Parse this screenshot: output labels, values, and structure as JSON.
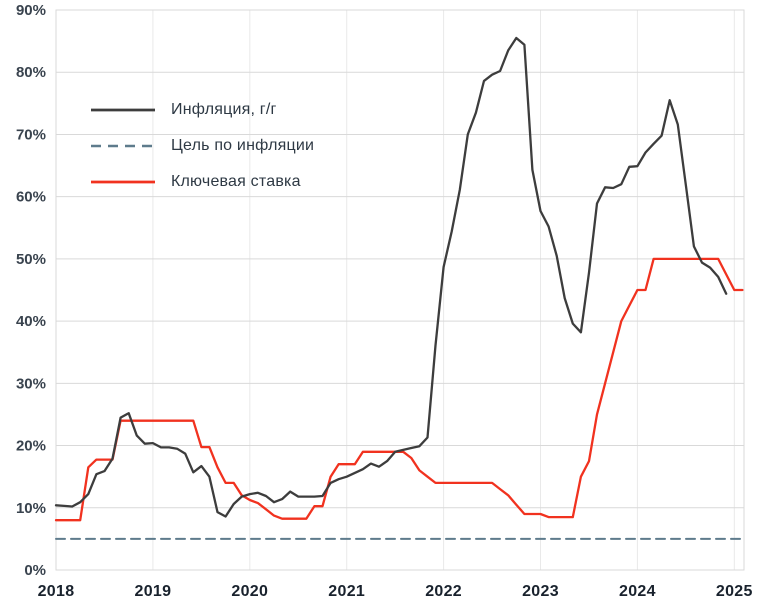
{
  "chart_data": {
    "type": "line",
    "xlim": [
      2018,
      2025.1
    ],
    "ylim": [
      0,
      90
    ],
    "grid": true,
    "legend_position": "top-left-inside",
    "grid_color": "#d9d9d9",
    "grid_color_vertical": "#e9e9e9",
    "x_ticks": [
      {
        "value": 2018,
        "label": "2018"
      },
      {
        "value": 2019,
        "label": "2019"
      },
      {
        "value": 2020,
        "label": "2020"
      },
      {
        "value": 2021,
        "label": "2021"
      },
      {
        "value": 2022,
        "label": "2022"
      },
      {
        "value": 2023,
        "label": "2023"
      },
      {
        "value": 2024,
        "label": "2024"
      },
      {
        "value": 2025,
        "label": "2025"
      }
    ],
    "y_ticks": [
      {
        "value": 0,
        "label": "0%"
      },
      {
        "value": 10,
        "label": "10%"
      },
      {
        "value": 20,
        "label": "20%"
      },
      {
        "value": 30,
        "label": "30%"
      },
      {
        "value": 40,
        "label": "40%"
      },
      {
        "value": 50,
        "label": "50%"
      },
      {
        "value": 60,
        "label": "60%"
      },
      {
        "value": 70,
        "label": "70%"
      },
      {
        "value": 80,
        "label": "80%"
      },
      {
        "value": 90,
        "label": "90%"
      }
    ],
    "series": [
      {
        "name": "Инфляция, г/г",
        "color": "#3d3d3d",
        "style": "solid",
        "width": 2.3,
        "z": 3,
        "x_start": 2018,
        "x_step": 0.083333,
        "values": [
          10.4,
          10.3,
          10.2,
          10.9,
          12.2,
          15.4,
          15.9,
          17.9,
          24.5,
          25.2,
          21.6,
          20.3,
          20.4,
          19.7,
          19.7,
          19.5,
          18.7,
          15.7,
          16.7,
          15.0,
          9.3,
          8.6,
          10.6,
          11.8,
          12.2,
          12.4,
          11.9,
          10.9,
          11.4,
          12.6,
          11.8,
          11.8,
          11.8,
          11.9,
          14.0,
          14.6,
          15.0,
          15.6,
          16.2,
          17.1,
          16.6,
          17.5,
          19.0,
          19.3,
          19.6,
          19.9,
          21.3,
          36.1,
          48.7,
          54.4,
          61.1,
          70.0,
          73.5,
          78.6,
          79.6,
          80.2,
          83.5,
          85.5,
          84.4,
          64.3,
          57.7,
          55.2,
          50.5,
          43.7,
          39.6,
          38.2,
          47.8,
          58.9,
          61.5,
          61.4,
          62.0,
          64.8,
          64.9,
          67.1,
          68.5,
          69.8,
          75.5,
          71.6,
          61.8,
          52.0,
          49.4,
          48.6,
          47.1,
          44.4
        ]
      },
      {
        "name": "Цель по инфляции",
        "color": "#5e7b8c",
        "style": "dashed",
        "width": 2,
        "dash": "9 6",
        "z": 1,
        "x": [
          2018,
          2025.1
        ],
        "values": [
          5,
          5
        ]
      },
      {
        "name": "Ключевая ставка",
        "color": "#f1321f",
        "style": "solid",
        "width": 2.3,
        "z": 2,
        "x_start": 2018,
        "x_step": 0.083333,
        "values": [
          8,
          8,
          8,
          8,
          16.5,
          17.75,
          17.75,
          17.75,
          24,
          24,
          24,
          24,
          24,
          24,
          24,
          24,
          24,
          24,
          19.75,
          19.75,
          16.5,
          14,
          14,
          12,
          11.25,
          10.75,
          9.75,
          8.75,
          8.25,
          8.25,
          8.25,
          8.25,
          10.25,
          10.25,
          15,
          17,
          17,
          17,
          19,
          19,
          19,
          19,
          19,
          19,
          18,
          16,
          15,
          14,
          14,
          14,
          14,
          14,
          14,
          14,
          14,
          13,
          12,
          10.5,
          9,
          9,
          9,
          8.5,
          8.5,
          8.5,
          8.5,
          15,
          17.5,
          25,
          30,
          35,
          40,
          42.5,
          45,
          45,
          50,
          50,
          50,
          50,
          50,
          50,
          50,
          50,
          50,
          47.5,
          45,
          45
        ]
      }
    ]
  }
}
